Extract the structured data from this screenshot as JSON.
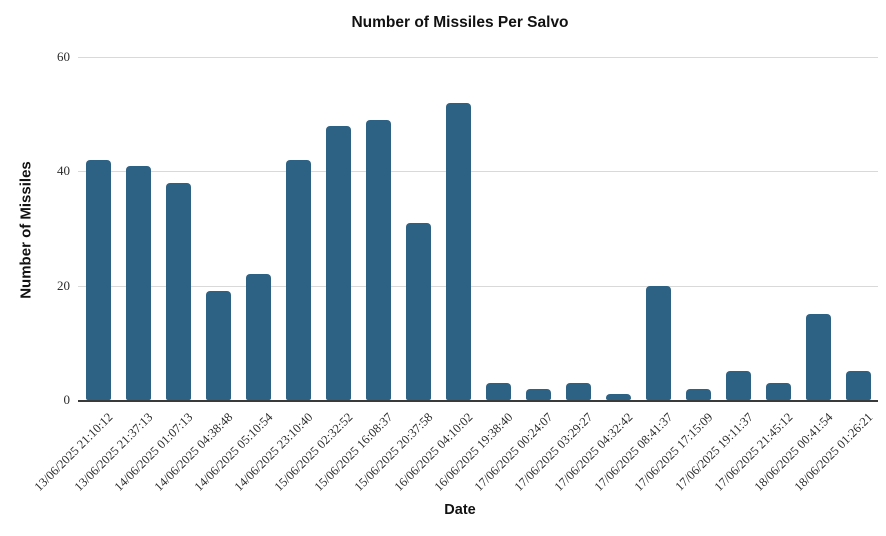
{
  "chart_data": {
    "type": "bar",
    "title": "Number of Missiles Per Salvo",
    "xlabel": "Date",
    "ylabel": "Number of Missiles",
    "categories": [
      "13/06/2025 21:10:12",
      "13/06/2025 21:37:13",
      "14/06/2025 01:07:13",
      "14/06/2025 04:38:48",
      "14/06/2025 05:10:54",
      "14/06/2025 23:10:40",
      "15/06/2025 02:32:52",
      "15/06/2025 16:08:37",
      "15/06/2025 20:37:58",
      "16/06/2025 04:10:02",
      "16/06/2025 19:38:40",
      "17/06/2025 00:24:07",
      "17/06/2025 03:29:27",
      "17/06/2025 04:32:42",
      "17/06/2025 08:41:37",
      "17/06/2025 17:15:09",
      "17/06/2025 19:11:37",
      "17/06/2025 21:45:12",
      "18/06/2025 00:41:54",
      "18/06/2025 01:26:21"
    ],
    "values": [
      42,
      41,
      38,
      19,
      22,
      42,
      48,
      49,
      31,
      52,
      3,
      2,
      3,
      1,
      20,
      2,
      5,
      3,
      15,
      5
    ],
    "yticks": [
      0,
      20,
      40,
      60
    ],
    "ylim": [
      0,
      60
    ],
    "grid": true,
    "legend": false,
    "colors": {
      "bar": "#2d6284",
      "gridline": "#d9d9d9",
      "axis_line": "#3a3a3a",
      "tick_text": "#2b2b2b",
      "title_text": "#111111",
      "background": "#ffffff"
    }
  }
}
